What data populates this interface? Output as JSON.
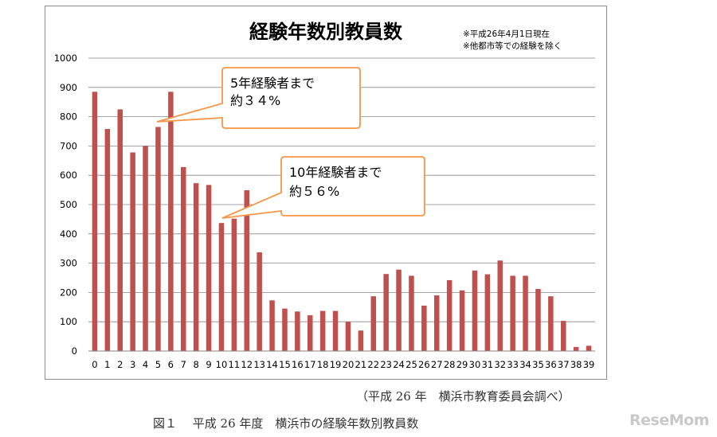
{
  "chart_data": {
    "type": "bar",
    "title": "経験年数別教員数",
    "notes": [
      "※平成26年4月1日現在",
      "※他都市等での経験を除く"
    ],
    "categories": [
      "0",
      "1",
      "2",
      "3",
      "4",
      "5",
      "6",
      "7",
      "8",
      "9",
      "10",
      "11",
      "12",
      "13",
      "14",
      "15",
      "16",
      "17",
      "18",
      "19",
      "20",
      "21",
      "22",
      "23",
      "24",
      "25",
      "26",
      "27",
      "28",
      "29",
      "30",
      "31",
      "32",
      "33",
      "34",
      "35",
      "36",
      "37",
      "38",
      "39"
    ],
    "values": [
      885,
      758,
      825,
      678,
      700,
      765,
      885,
      628,
      573,
      567,
      437,
      452,
      549,
      337,
      173,
      145,
      135,
      122,
      137,
      137,
      100,
      70,
      187,
      263,
      278,
      257,
      155,
      190,
      242,
      207,
      275,
      262,
      309,
      257,
      257,
      212,
      187,
      103,
      14,
      18
    ],
    "ylim": [
      0,
      1000
    ],
    "yticks": [
      "0",
      "100",
      "200",
      "300",
      "400",
      "500",
      "600",
      "700",
      "800",
      "900",
      "1000"
    ],
    "bar_color": "#c0504d",
    "grid": true,
    "callouts": [
      {
        "line1": "5年経験者まで",
        "line2": "約３４%",
        "border_color": "#f79646"
      },
      {
        "line1": "10年経験者まで",
        "line2": "約５６%",
        "border_color": "#f79646"
      }
    ]
  },
  "source_text": "（平成 26 年　横浜市教育委員会調べ）",
  "caption_text": "図１　 平成 26 年度　横浜市の経験年数別教員数",
  "logo_text": "ReseMom"
}
